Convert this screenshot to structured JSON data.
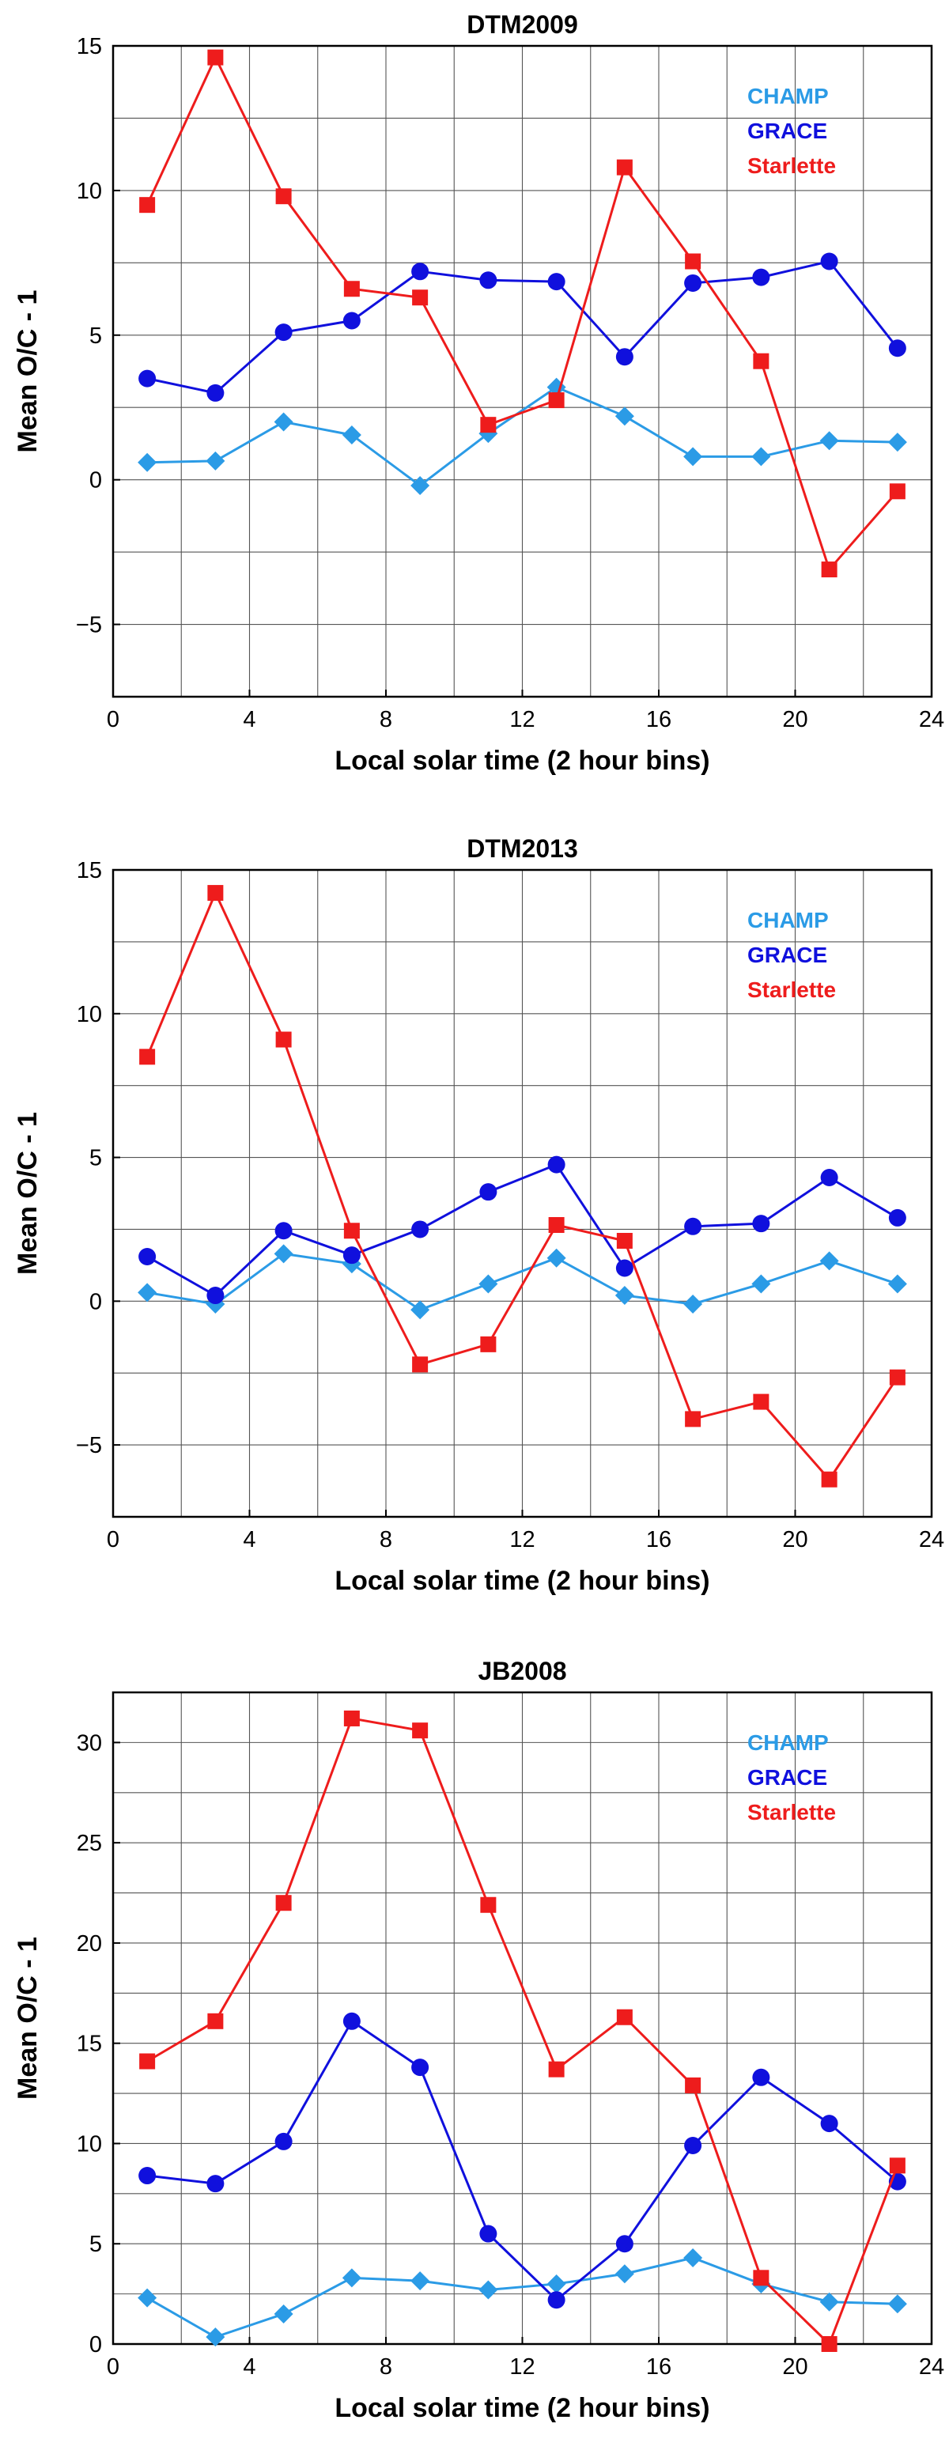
{
  "colors": {
    "CHAMP": "#2b9be6",
    "GRACE": "#1010dd",
    "Starlette": "#ee1c1c"
  },
  "chart_data": [
    {
      "type": "line",
      "title": "DTM2009",
      "xlabel": "Local solar time (2 hour bins)",
      "ylabel": "Mean O/C - 1",
      "xlim": [
        0,
        24
      ],
      "ylim": [
        -7.5,
        15
      ],
      "xticks": [
        0,
        4,
        8,
        12,
        16,
        20,
        24
      ],
      "yticks": [
        -5,
        0,
        5,
        10,
        15
      ],
      "ytick_labels": [
        "−5",
        "0",
        "5",
        "10",
        "15"
      ],
      "grid": true,
      "legend_position": "top-right",
      "x": [
        1,
        3,
        5,
        7,
        9,
        11,
        13,
        15,
        17,
        19,
        21,
        23
      ],
      "series": [
        {
          "name": "CHAMP",
          "marker": "diamond",
          "values": [
            0.6,
            0.65,
            2.0,
            1.55,
            -0.2,
            1.6,
            3.2,
            2.2,
            0.8,
            0.8,
            1.35,
            1.3
          ]
        },
        {
          "name": "GRACE",
          "marker": "circle",
          "values": [
            3.5,
            3.0,
            5.1,
            5.5,
            7.2,
            6.9,
            6.85,
            4.25,
            6.8,
            7.0,
            7.55,
            4.55
          ]
        },
        {
          "name": "Starlette",
          "marker": "square",
          "values": [
            9.5,
            14.6,
            9.8,
            6.6,
            6.3,
            1.9,
            2.75,
            10.8,
            7.55,
            4.1,
            -3.1,
            -0.4
          ]
        }
      ]
    },
    {
      "type": "line",
      "title": "DTM2013",
      "xlabel": "Local solar time (2 hour bins)",
      "ylabel": "Mean O/C - 1",
      "xlim": [
        0,
        24
      ],
      "ylim": [
        -7.5,
        15
      ],
      "xticks": [
        0,
        4,
        8,
        12,
        16,
        20,
        24
      ],
      "yticks": [
        -5,
        0,
        5,
        10,
        15
      ],
      "ytick_labels": [
        "−5",
        "0",
        "5",
        "10",
        "15"
      ],
      "grid": true,
      "legend_position": "top-right",
      "x": [
        1,
        3,
        5,
        7,
        9,
        11,
        13,
        15,
        17,
        19,
        21,
        23
      ],
      "series": [
        {
          "name": "CHAMP",
          "marker": "diamond",
          "values": [
            0.3,
            -0.1,
            1.65,
            1.3,
            -0.3,
            0.6,
            1.5,
            0.2,
            -0.1,
            0.6,
            1.4,
            0.6
          ]
        },
        {
          "name": "GRACE",
          "marker": "circle",
          "values": [
            1.55,
            0.2,
            2.45,
            1.6,
            2.5,
            3.8,
            4.75,
            1.15,
            2.6,
            2.7,
            4.3,
            2.9
          ]
        },
        {
          "name": "Starlette",
          "marker": "square",
          "values": [
            8.5,
            14.2,
            9.1,
            2.45,
            -2.2,
            -1.5,
            2.65,
            2.1,
            -4.1,
            -3.5,
            -6.2,
            -2.65
          ]
        }
      ]
    },
    {
      "type": "line",
      "title": "JB2008",
      "xlabel": "Local solar time (2 hour bins)",
      "ylabel": "Mean O/C - 1",
      "xlim": [
        0,
        24
      ],
      "ylim": [
        0,
        32.5
      ],
      "xticks": [
        0,
        4,
        8,
        12,
        16,
        20,
        24
      ],
      "yticks": [
        0,
        5,
        10,
        15,
        20,
        25,
        30
      ],
      "ytick_labels": [
        "0",
        "5",
        "10",
        "15",
        "20",
        "25",
        "30"
      ],
      "grid": true,
      "legend_position": "top-right",
      "x": [
        1,
        3,
        5,
        7,
        9,
        11,
        13,
        15,
        17,
        19,
        21,
        23
      ],
      "series": [
        {
          "name": "CHAMP",
          "marker": "diamond",
          "values": [
            2.3,
            0.35,
            1.5,
            3.3,
            3.15,
            2.7,
            3.0,
            3.5,
            4.3,
            3.0,
            2.1,
            2.0
          ]
        },
        {
          "name": "GRACE",
          "marker": "circle",
          "values": [
            8.4,
            8.0,
            10.1,
            16.1,
            13.8,
            5.5,
            2.2,
            5.0,
            9.9,
            13.3,
            11.0,
            8.1
          ]
        },
        {
          "name": "Starlette",
          "marker": "square",
          "values": [
            14.1,
            16.1,
            22.0,
            31.2,
            30.6,
            21.9,
            13.7,
            16.3,
            12.9,
            3.3,
            0.0,
            8.9
          ]
        }
      ]
    }
  ]
}
